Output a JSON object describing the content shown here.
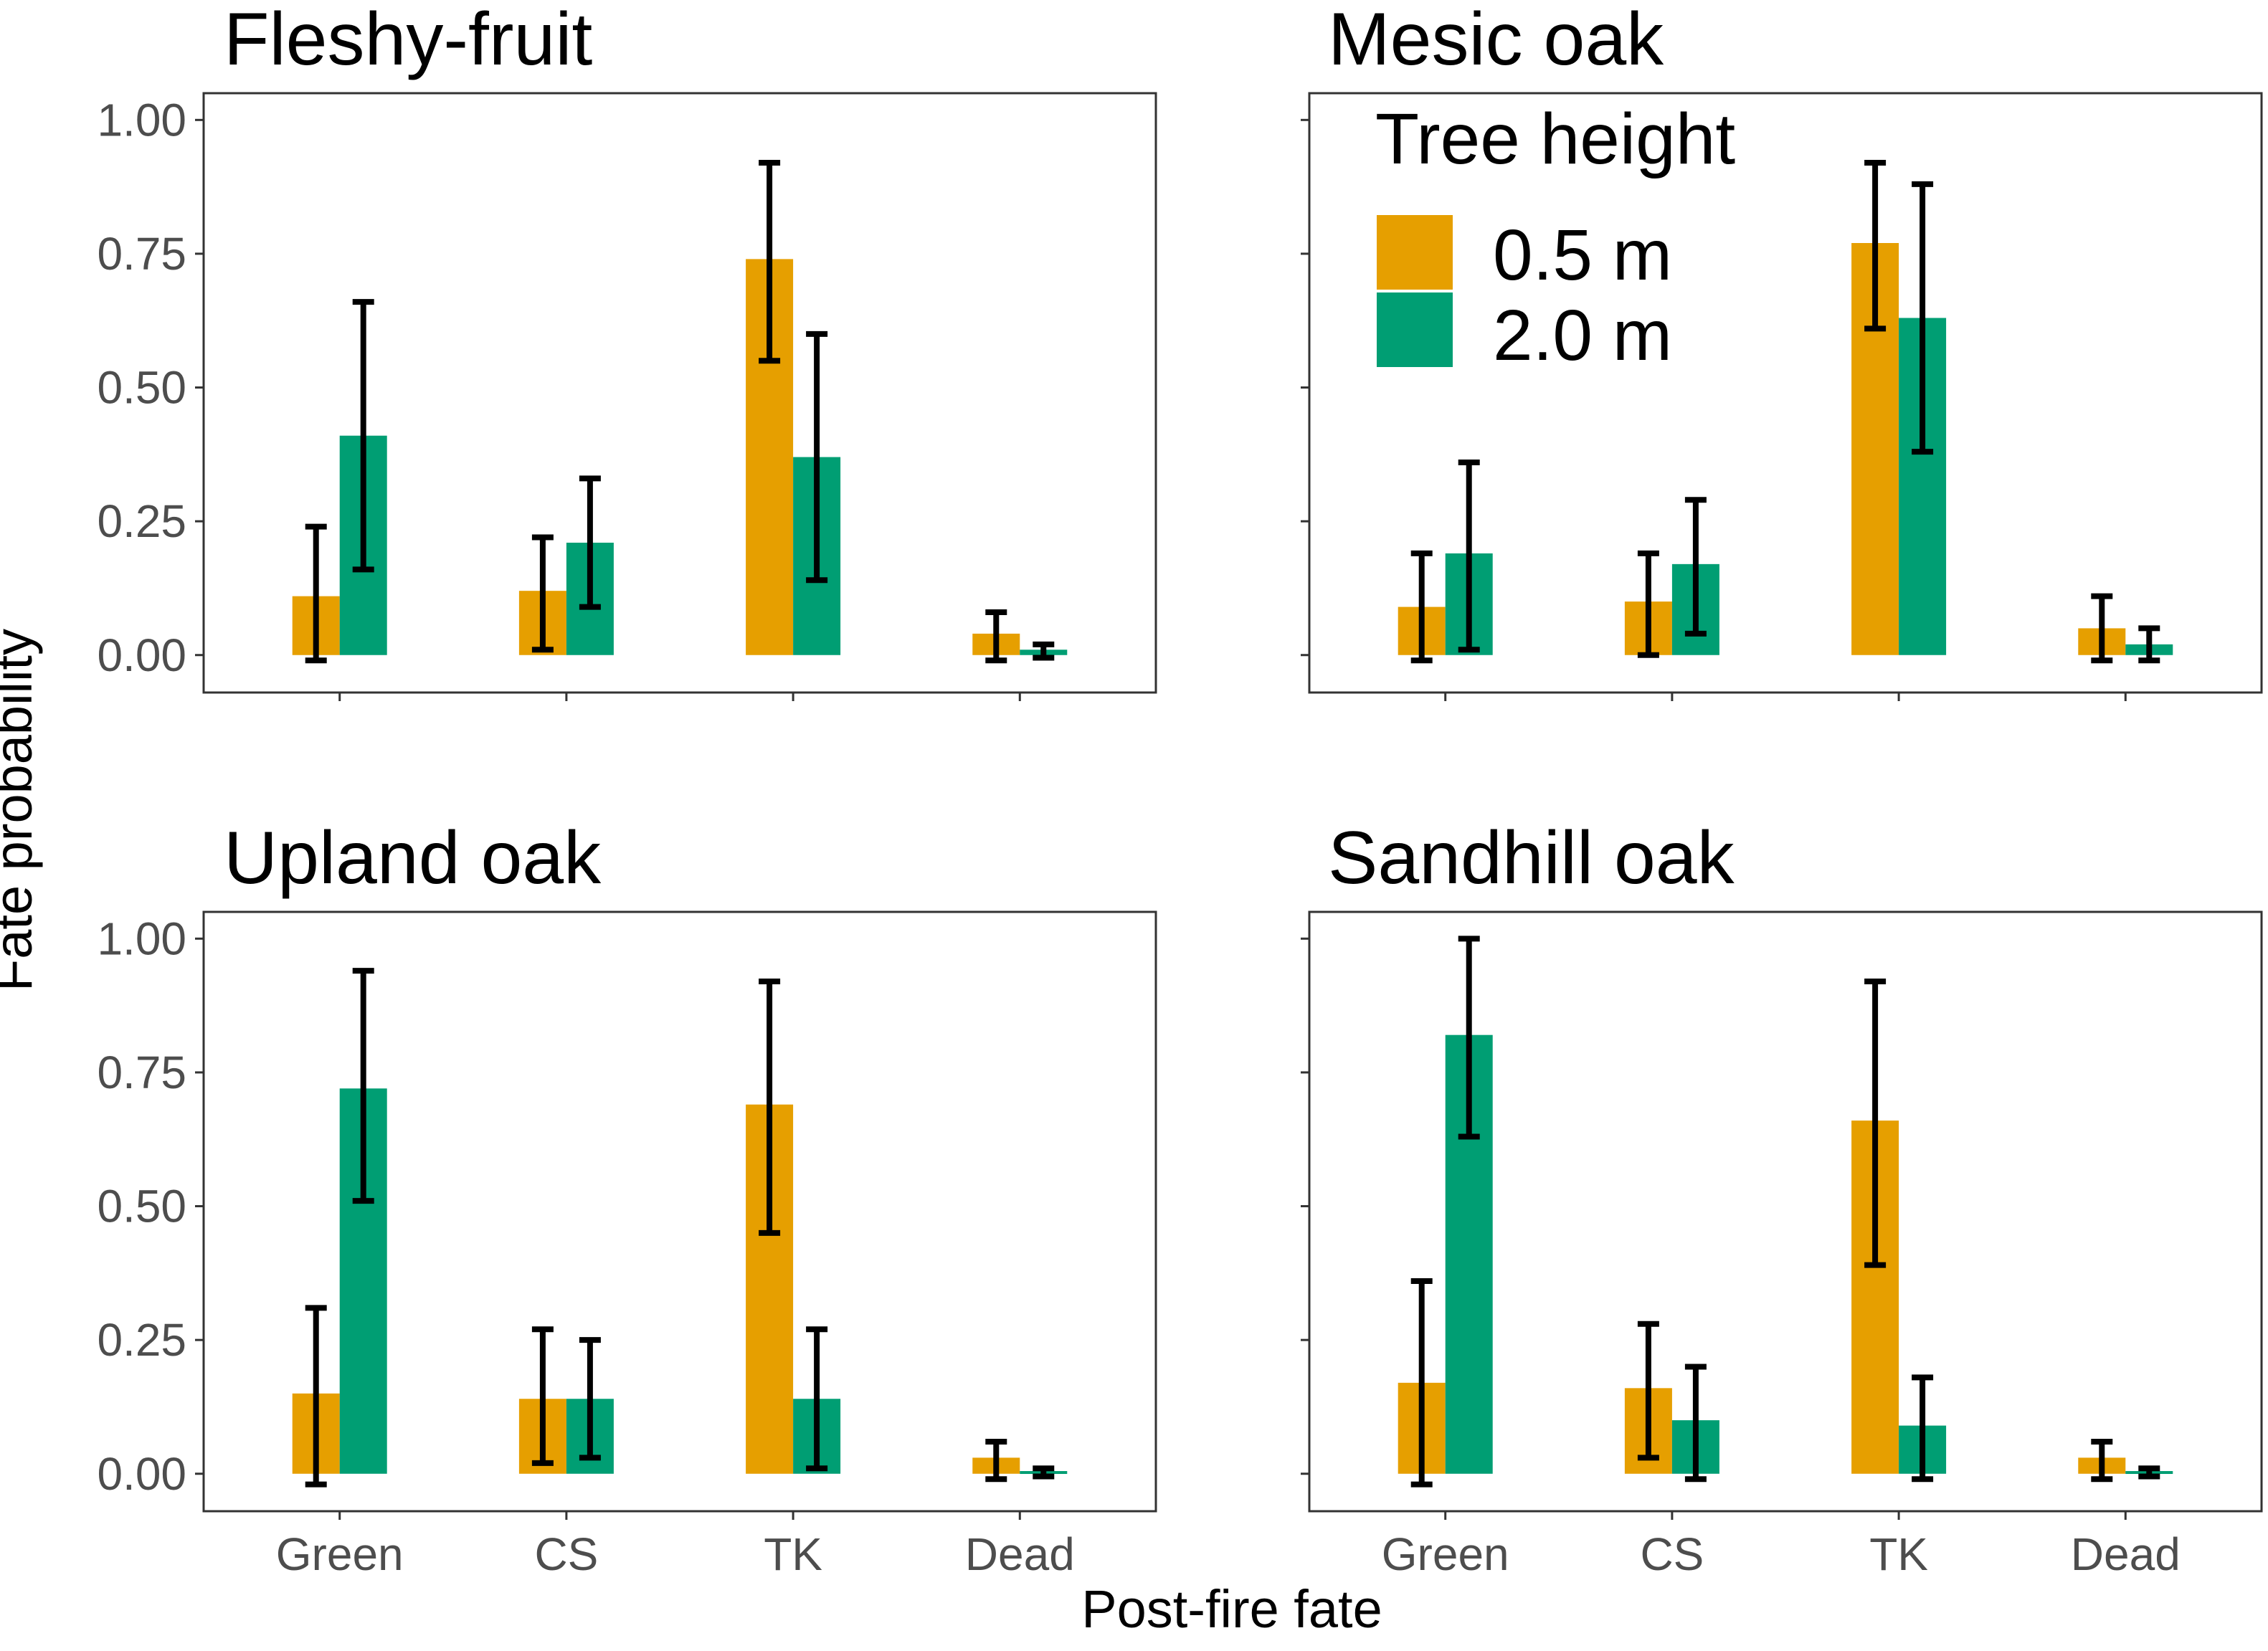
{
  "chart_data": {
    "type": "bar",
    "xlabel": "Post-fire fate",
    "ylabel": "Fate probability",
    "categories": [
      "Green",
      "CS",
      "TK",
      "Dead"
    ],
    "ylim": [
      0,
      1.0
    ],
    "yticks": [
      "0.00",
      "0.25",
      "0.50",
      "0.75",
      "1.00"
    ],
    "ytick_values": [
      0,
      0.25,
      0.5,
      0.75,
      1.0
    ],
    "legend": {
      "title": "Tree height",
      "placement": "inside top-left of Mesic oak panel",
      "entries": [
        {
          "name": "0.5 m",
          "color": "#E69F00"
        },
        {
          "name": "2.0 m",
          "color": "#009E73"
        }
      ]
    },
    "panels": [
      {
        "title": "Fleshy-fruit",
        "series": [
          {
            "name": "0.5 m",
            "values": [
              0.11,
              0.12,
              0.74,
              0.04
            ],
            "lower": [
              -0.01,
              0.01,
              0.55,
              -0.01
            ],
            "upper": [
              0.24,
              0.22,
              0.92,
              0.08
            ]
          },
          {
            "name": "2.0 m",
            "values": [
              0.41,
              0.21,
              0.37,
              0.01
            ],
            "lower": [
              0.16,
              0.09,
              0.14,
              -0.005
            ],
            "upper": [
              0.66,
              0.33,
              0.6,
              0.02
            ]
          }
        ]
      },
      {
        "title": "Mesic oak",
        "series": [
          {
            "name": "0.5 m",
            "values": [
              0.09,
              0.1,
              0.77,
              0.05
            ],
            "lower": [
              -0.01,
              0.0,
              0.61,
              -0.01
            ],
            "upper": [
              0.19,
              0.19,
              0.92,
              0.11
            ]
          },
          {
            "name": "2.0 m",
            "values": [
              0.19,
              0.17,
              0.63,
              0.02
            ],
            "lower": [
              0.01,
              0.04,
              0.38,
              -0.01
            ],
            "upper": [
              0.36,
              0.29,
              0.88,
              0.05
            ]
          }
        ]
      },
      {
        "title": "Upland oak",
        "series": [
          {
            "name": "0.5 m",
            "values": [
              0.15,
              0.14,
              0.69,
              0.03
            ],
            "lower": [
              -0.02,
              0.02,
              0.45,
              -0.01
            ],
            "upper": [
              0.31,
              0.27,
              0.92,
              0.06
            ]
          },
          {
            "name": "2.0 m",
            "values": [
              0.72,
              0.14,
              0.14,
              0.005
            ],
            "lower": [
              0.51,
              0.03,
              0.01,
              -0.005
            ],
            "upper": [
              0.94,
              0.25,
              0.27,
              0.01
            ]
          }
        ]
      },
      {
        "title": "Sandhill oak",
        "series": [
          {
            "name": "0.5 m",
            "values": [
              0.17,
              0.16,
              0.66,
              0.03
            ],
            "lower": [
              -0.02,
              0.03,
              0.39,
              -0.01
            ],
            "upper": [
              0.36,
              0.28,
              0.92,
              0.06
            ]
          },
          {
            "name": "2.0 m",
            "values": [
              0.82,
              0.1,
              0.09,
              0.005
            ],
            "lower": [
              0.63,
              -0.01,
              -0.01,
              -0.005
            ],
            "upper": [
              1.0,
              0.2,
              0.18,
              0.01
            ]
          }
        ]
      }
    ]
  }
}
